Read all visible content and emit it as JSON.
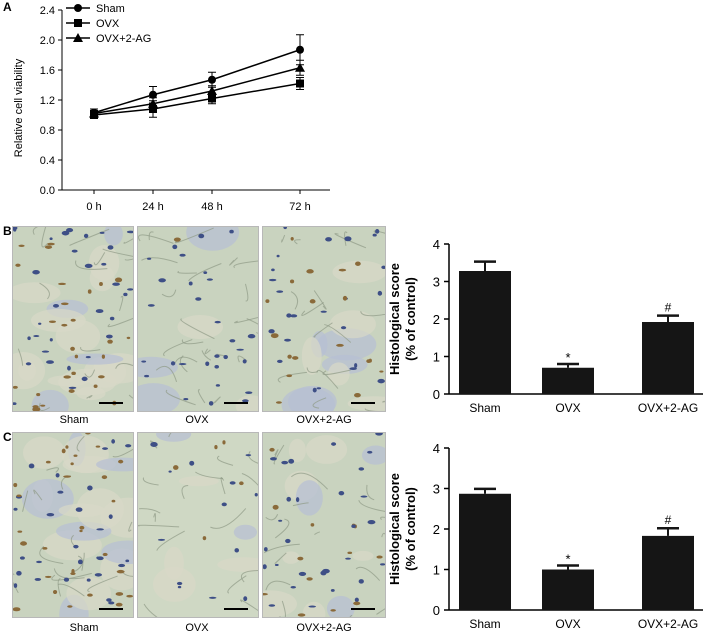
{
  "panels": [
    {
      "letter": "A"
    },
    {
      "letter": "B",
      "captions": [
        "Sham",
        "OVX",
        "OVX+2-AG"
      ]
    },
    {
      "letter": "C",
      "captions": [
        "Sham",
        "OVX",
        "OVX+2-AG"
      ]
    }
  ],
  "chart_data": [
    {
      "id": "A",
      "type": "line",
      "categories": [
        "0 h",
        "24 h",
        "48 h",
        "72 h"
      ],
      "ylabel": "Relative cell viability",
      "ylim": [
        0,
        2.4
      ],
      "yticks": [
        "0.0",
        "0.4",
        "0.8",
        "1.2",
        "1.6",
        "2.0",
        "2.4"
      ],
      "legend": "top-left",
      "series": [
        {
          "name": "Sham",
          "marker": "circle",
          "values": [
            1.03,
            1.27,
            1.47,
            1.87
          ],
          "errors": [
            0.05,
            0.11,
            0.1,
            0.2
          ]
        },
        {
          "name": "OVX",
          "marker": "square",
          "values": [
            1.0,
            1.08,
            1.22,
            1.42
          ],
          "errors": [
            0.04,
            0.11,
            0.07,
            0.08
          ]
        },
        {
          "name": "OVX+2-AG",
          "marker": "triangle",
          "values": [
            1.02,
            1.15,
            1.32,
            1.63
          ],
          "errors": [
            0.04,
            0.08,
            0.07,
            0.1
          ]
        }
      ]
    },
    {
      "id": "B",
      "type": "bar",
      "categories": [
        "Sham",
        "OVX",
        "OVX+2-AG"
      ],
      "values": [
        3.28,
        0.7,
        1.92
      ],
      "errors": [
        0.25,
        0.1,
        0.17
      ],
      "annotations": [
        "",
        "*",
        "#"
      ],
      "ylabel": "Histological score",
      "ylabel2": "(% of control)",
      "ylim": [
        0,
        4
      ],
      "yticks": [
        "0",
        "1",
        "2",
        "3",
        "4"
      ],
      "color": "#151515"
    },
    {
      "id": "C",
      "type": "bar",
      "categories": [
        "Sham",
        "OVX",
        "OVX+2-AG"
      ],
      "values": [
        2.87,
        1.0,
        1.83
      ],
      "errors": [
        0.12,
        0.1,
        0.19
      ],
      "annotations": [
        "",
        "*",
        "#"
      ],
      "ylabel": "Histological score",
      "ylabel2": "(% of control)",
      "ylim": [
        0,
        4
      ],
      "yticks": [
        "0",
        "1",
        "2",
        "3",
        "4"
      ],
      "color": "#151515"
    }
  ]
}
